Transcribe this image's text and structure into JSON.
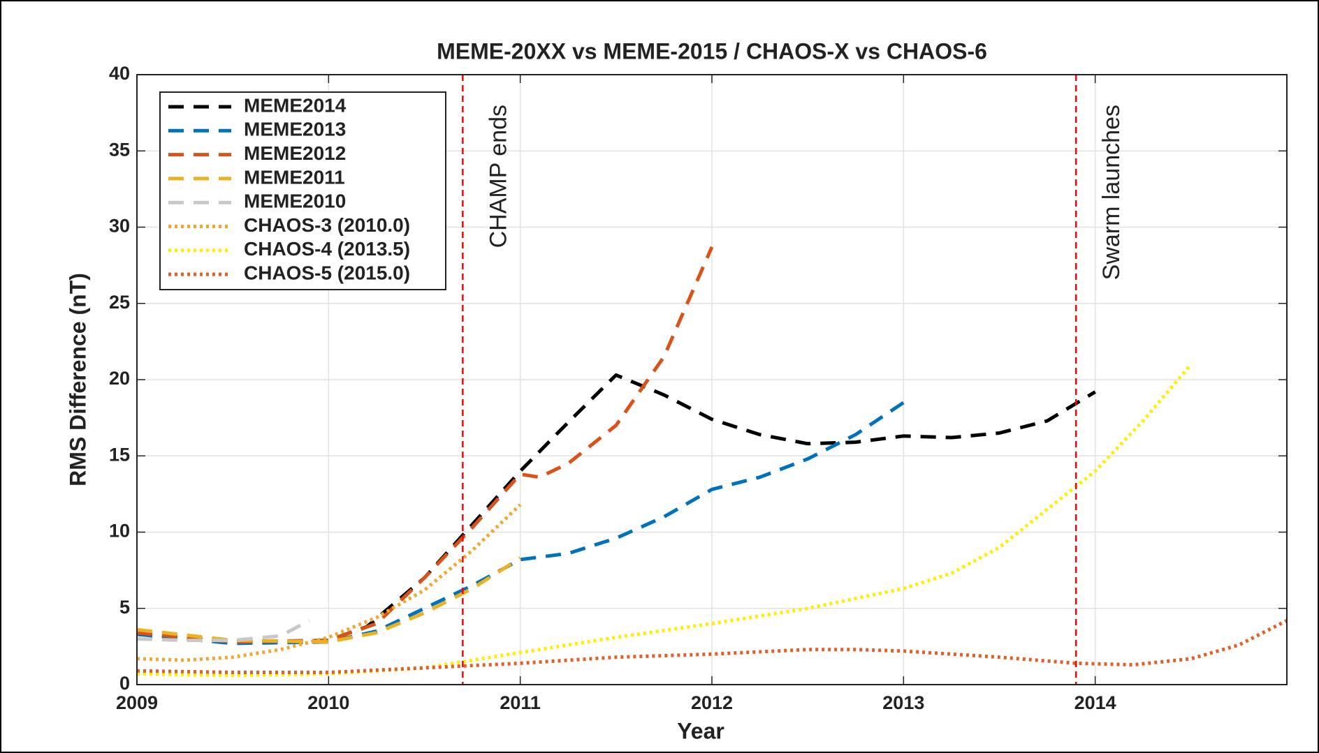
{
  "chart_data": {
    "type": "line",
    "title": "MEME-20XX vs MEME-2015 / CHAOS-X vs CHAOS-6",
    "x_label": "Year",
    "y_label": "RMS Difference (nT)",
    "xlim": [
      2009,
      2015
    ],
    "ylim": [
      0,
      40
    ],
    "xticks": [
      2009,
      2010,
      2011,
      2012,
      2013,
      2014
    ],
    "yticks": [
      0,
      5,
      10,
      15,
      20,
      25,
      30,
      35,
      40
    ],
    "grid": true,
    "legend": "top-left",
    "series": [
      {
        "name": "MEME2014",
        "color": "#000000",
        "style": "dashed",
        "x": [
          2009,
          2009.5,
          2010,
          2010.2,
          2010.5,
          2010.75,
          2011,
          2011.25,
          2011.5,
          2011.75,
          2012,
          2012.25,
          2012.5,
          2012.75,
          2013,
          2013.25,
          2013.5,
          2013.75,
          2014
        ],
        "values": [
          3.3,
          2.8,
          2.9,
          3.8,
          7,
          10.5,
          14,
          17.2,
          20.3,
          19,
          17.4,
          16.4,
          15.8,
          15.9,
          16.3,
          16.2,
          16.5,
          17.3,
          19.2
        ]
      },
      {
        "name": "MEME2013",
        "color": "#0072bd",
        "style": "dashed",
        "x": [
          2009,
          2009.5,
          2010,
          2010.25,
          2010.5,
          2010.75,
          2011,
          2011.25,
          2011.5,
          2011.75,
          2012,
          2012.25,
          2012.5,
          2012.75,
          2013
        ],
        "values": [
          3.3,
          2.7,
          2.8,
          3.5,
          5,
          6.5,
          8.2,
          8.6,
          9.6,
          11,
          12.8,
          13.6,
          14.8,
          16.4,
          18.5
        ]
      },
      {
        "name": "MEME2012",
        "color": "#d95319",
        "style": "dashed",
        "x": [
          2009,
          2009.5,
          2010,
          2010.25,
          2010.5,
          2010.75,
          2011,
          2011.1,
          2011.25,
          2011.5,
          2011.75,
          2012
        ],
        "values": [
          3.4,
          2.8,
          2.9,
          4,
          7,
          10.3,
          13.8,
          13.6,
          14.5,
          17,
          21.5,
          28.7
        ]
      },
      {
        "name": "MEME2011",
        "color": "#edb120",
        "style": "dashed",
        "x": [
          2009,
          2009.5,
          2010,
          2010.25,
          2010.5,
          2010.75,
          2011
        ],
        "values": [
          3.6,
          2.9,
          2.8,
          3.4,
          4.7,
          6.3,
          8.3
        ]
      },
      {
        "name": "MEME2010",
        "color": "#c8c8c8",
        "style": "dashed",
        "x": [
          2009,
          2009.25,
          2009.5,
          2009.75,
          2009.9
        ],
        "values": [
          3.0,
          2.9,
          2.9,
          3.2,
          4.2
        ]
      },
      {
        "name": "CHAOS-3 (2010.0)",
        "color": "#f0a830",
        "style": "dotted",
        "x": [
          2009,
          2009.25,
          2009.5,
          2009.75,
          2010,
          2010.25,
          2010.5,
          2010.75,
          2011
        ],
        "values": [
          1.7,
          1.6,
          1.8,
          2.3,
          3.1,
          4.4,
          6.2,
          8.8,
          11.8
        ]
      },
      {
        "name": "CHAOS-4 (2013.5)",
        "color": "#ffee00",
        "style": "dotted",
        "x": [
          2009,
          2009.5,
          2010,
          2010.5,
          2011,
          2011.5,
          2012,
          2012.5,
          2013,
          2013.25,
          2013.5,
          2013.75,
          2014,
          2014.25,
          2014.5
        ],
        "values": [
          0.7,
          0.6,
          0.7,
          1.1,
          2.1,
          3.1,
          4,
          5,
          6.3,
          7.3,
          9,
          11.5,
          14,
          17.3,
          21
        ]
      },
      {
        "name": "CHAOS-5 (2015.0)",
        "color": "#e0602a",
        "style": "dotted",
        "x": [
          2009,
          2009.5,
          2010,
          2010.5,
          2011,
          2011.5,
          2012,
          2012.5,
          2012.75,
          2013,
          2013.5,
          2013.9,
          2014.2,
          2014.5,
          2014.75,
          2015
        ],
        "values": [
          0.9,
          0.8,
          0.8,
          1.1,
          1.4,
          1.8,
          2.0,
          2.3,
          2.3,
          2.2,
          1.8,
          1.4,
          1.3,
          1.7,
          2.6,
          4.2
        ]
      }
    ],
    "annotations": [
      {
        "x": 2010.7,
        "text": "CHAMP ends",
        "color": "#ff0000"
      },
      {
        "x": 2013.9,
        "text": "Swarm launches",
        "color": "#ff0000"
      }
    ]
  }
}
